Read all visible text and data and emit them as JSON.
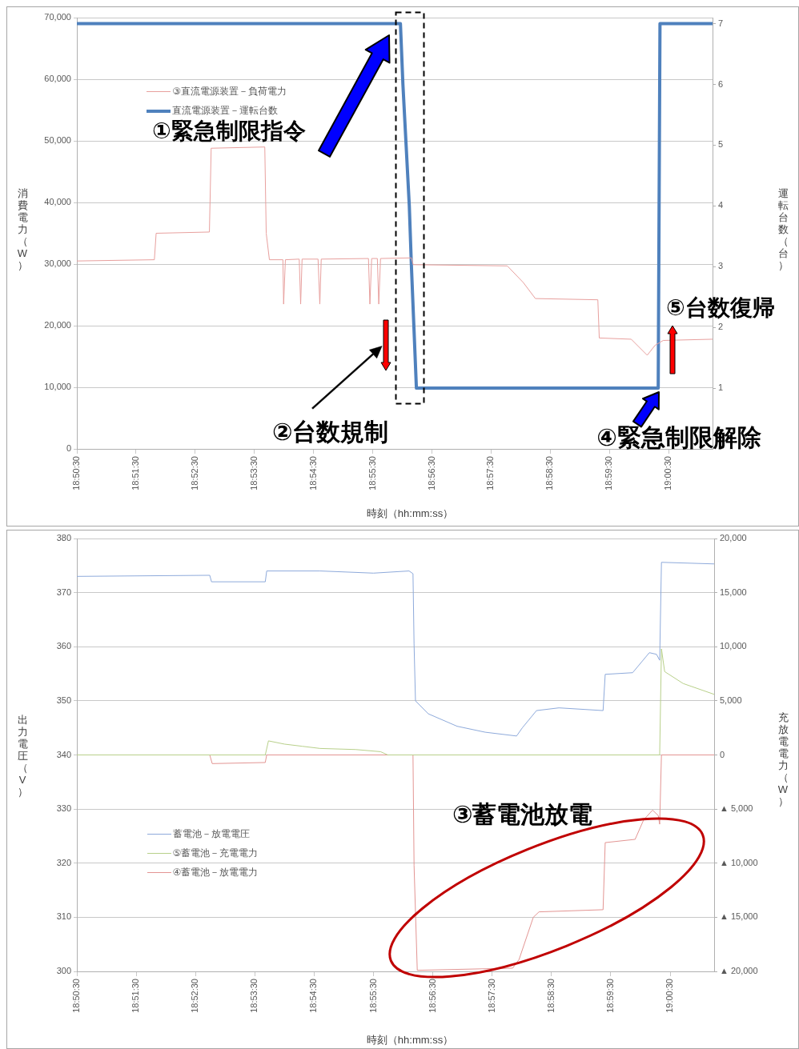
{
  "chart_data": [
    {
      "type": "line",
      "xlabel": "時刻（hh:mm:ss）",
      "ylabel": "消費電力（W）",
      "y2label": "運転台数（台）",
      "legend": "top left",
      "grid": "y",
      "annotations": [
        "①緊急制限指令",
        "②台数規制",
        {
          "text": "④緊急制限解除",
          "x": 19.0054,
          "y": 10000
        },
        "⑤台数復帰"
      ],
      "xlim": [
        18.84167,
        19.0207
      ],
      "xticks": [
        {
          "value": 18.84167,
          "label": "18:50:30"
        },
        {
          "value": 18.85833,
          "label": "18:51:30"
        },
        {
          "value": 18.875,
          "label": "18:52:30"
        },
        {
          "value": 18.89167,
          "label": "18:53:30"
        },
        {
          "value": 18.90833,
          "label": "18:54:30"
        },
        {
          "value": 18.925,
          "label": "18:55:30"
        },
        {
          "value": 18.94167,
          "label": "18:56:30"
        },
        {
          "value": 18.95833,
          "label": "18:57:30"
        },
        {
          "value": 18.975,
          "label": "18:58:30"
        },
        {
          "value": 18.99167,
          "label": "18:59:30"
        },
        {
          "value": 19.00833,
          "label": "19:00:30"
        }
      ],
      "ylim": [
        0,
        70000
      ],
      "yticks": [
        0,
        {
          "value": 10000,
          "label": "10,000"
        },
        {
          "value": 20000,
          "label": "20,000"
        },
        {
          "value": 30000,
          "label": "30,000"
        },
        {
          "value": 40000,
          "label": "40,000"
        },
        {
          "value": 50000,
          "label": "50,000"
        },
        {
          "value": 60000,
          "label": "60,000"
        },
        {
          "value": 70000,
          "label": "70,000"
        }
      ],
      "y2lim": [
        0,
        7.1
      ],
      "y2ticks": [
        1,
        2,
        3,
        4,
        5,
        6,
        7
      ],
      "series": [
        {
          "name": "③直流電源装置－負荷電力",
          "color": "#e8a09e",
          "x": [
            18.8417,
            18.8635,
            18.864,
            18.879,
            18.8795,
            18.8946,
            18.895,
            18.8959,
            18.8997,
            18.8999,
            18.9004,
            18.9043,
            18.9047,
            18.9051,
            18.9096,
            18.9101,
            18.9105,
            18.9238,
            18.9242,
            18.9247,
            18.9263,
            18.9267,
            18.9272,
            18.9359,
            18.9364,
            18.9629,
            18.9674,
            18.9708,
            18.9884,
            18.9888,
            18.9978,
            19.0023,
            19.0045,
            19.0068,
            19.0207
          ],
          "values": [
            30500,
            30700,
            35000,
            35200,
            48800,
            49000,
            35000,
            30700,
            30700,
            23500,
            30700,
            30800,
            23500,
            30800,
            30800,
            23500,
            30800,
            30900,
            23500,
            30900,
            30900,
            23500,
            30900,
            31000,
            29900,
            29700,
            27000,
            24400,
            24200,
            18000,
            17800,
            15200,
            16800,
            17600,
            17800
          ]
        },
        {
          "name": "直流電源装置－運転台数",
          "color": "#4f81bd",
          "axis": "y2",
          "x": [
            18.8417,
            18.9328,
            18.9335,
            18.9344,
            18.9353,
            18.9359,
            18.9366,
            18.9373,
            19.0054,
            19.0059,
            19.0207
          ],
          "values": [
            7,
            7,
            6,
            5,
            4,
            3,
            2,
            1,
            1,
            7,
            7
          ]
        }
      ]
    },
    {
      "type": "line",
      "xlabel": "時刻（hh:mm:ss）",
      "ylabel": "出力電圧（V）",
      "y2label": "充放電電力（W）",
      "legend": "left",
      "grid": "y",
      "annotations": [
        "③蓄電池放電"
      ],
      "xlim": [
        18.84167,
        19.0207
      ],
      "xticks": [
        {
          "value": 18.84167,
          "label": "18:50:30"
        },
        {
          "value": 18.85833,
          "label": "18:51:30"
        },
        {
          "value": 18.875,
          "label": "18:52:30"
        },
        {
          "value": 18.89167,
          "label": "18:53:30"
        },
        {
          "value": 18.90833,
          "label": "18:54:30"
        },
        {
          "value": 18.925,
          "label": "18:55:30"
        },
        {
          "value": 18.94167,
          "label": "18:56:30"
        },
        {
          "value": 18.95833,
          "label": "18:57:30"
        },
        {
          "value": 18.975,
          "label": "18:58:30"
        },
        {
          "value": 18.99167,
          "label": "18:59:30"
        },
        {
          "value": 19.00833,
          "label": "19:00:30"
        }
      ],
      "ylim": [
        300,
        380
      ],
      "yticks": [
        300,
        310,
        320,
        330,
        340,
        350,
        360,
        370,
        380
      ],
      "y2lim": [
        -20000,
        20000
      ],
      "y2ticks": [
        {
          "value": -20000,
          "label": "▲ 20,000"
        },
        {
          "value": -15000,
          "label": "▲ 15,000"
        },
        {
          "value": -10000,
          "label": "▲ 10,000"
        },
        {
          "value": -5000,
          "label": "▲ 5,000"
        },
        0,
        {
          "value": 5000,
          "label": "5,000"
        },
        {
          "value": 10000,
          "label": "10,000"
        },
        {
          "value": 15000,
          "label": "15,000"
        },
        {
          "value": 20000,
          "label": "20,000"
        }
      ],
      "series": [
        {
          "name": "蓄電池－放電電圧",
          "color": "#8eaadb",
          "x": [
            18.8417,
            18.879,
            18.8795,
            18.8946,
            18.895,
            18.91,
            18.925,
            18.935,
            18.9361,
            18.9364,
            18.9368,
            18.9404,
            18.9485,
            18.9564,
            18.9652,
            18.9668,
            18.9708,
            18.9771,
            18.9895,
            18.9901,
            18.9978,
            19.0025,
            19.0045,
            19.0054,
            19.0059,
            19.0207
          ],
          "values": [
            373.0,
            373.2,
            372.0,
            372.0,
            374.0,
            374.0,
            373.6,
            374.0,
            373.5,
            360.5,
            350.0,
            347.6,
            345.3,
            344.2,
            343.5,
            345.0,
            348.2,
            348.7,
            348.2,
            354.9,
            355.2,
            358.9,
            358.6,
            357.5,
            375.6,
            375.3
          ]
        },
        {
          "name": "⑤蓄電池－充電電力",
          "color": "#b8d08a",
          "axis": "y2",
          "x": [
            18.8417,
            18.8946,
            18.8955,
            18.9,
            18.905,
            18.91,
            18.92,
            18.927,
            18.929,
            19.0054,
            19.0059,
            19.0068,
            19.012,
            19.0207
          ],
          "values": [
            0,
            0,
            1300,
            1000,
            800,
            600,
            500,
            300,
            0,
            0,
            9800,
            7700,
            6600,
            5600
          ]
        },
        {
          "name": "④蓄電池－放電電力",
          "color": "#e39593",
          "axis": "y2",
          "x": [
            18.8417,
            18.879,
            18.8797,
            18.8946,
            18.895,
            18.9361,
            18.9364,
            18.9373,
            18.9641,
            18.9659,
            18.9699,
            18.9715,
            18.9895,
            18.9901,
            18.9985,
            19.0009,
            19.0034,
            19.005,
            19.0054,
            19.0059,
            19.0207
          ],
          "values": [
            0,
            0,
            -800,
            -700,
            0,
            0,
            -10200,
            -19900,
            -19700,
            -18900,
            -15000,
            -14500,
            -14300,
            -8100,
            -7800,
            -6000,
            -5100,
            -5600,
            -6400,
            0,
            0
          ]
        }
      ]
    }
  ]
}
